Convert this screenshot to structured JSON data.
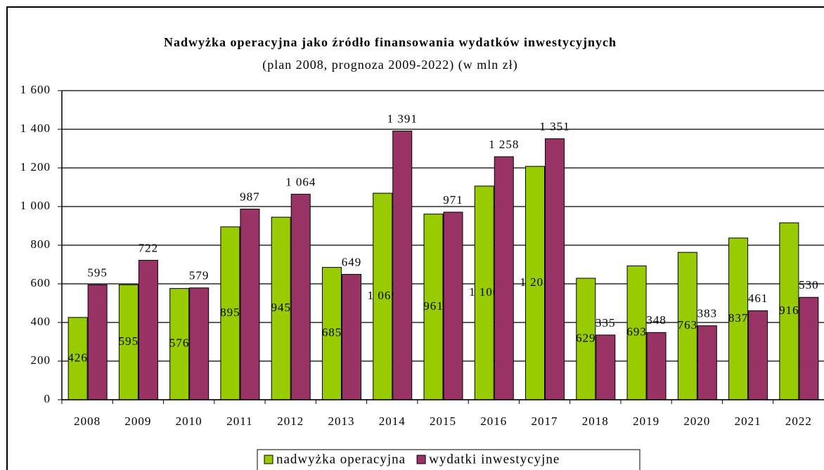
{
  "chart_data": {
    "type": "bar",
    "title": "Nadwyżka operacyjna jako źródło finansowania wydatków inwestycyjnych",
    "subtitle": "(plan 2008, prognoza 2009-2022) (w mln zł)",
    "categories": [
      "2008",
      "2009",
      "2010",
      "2011",
      "2012",
      "2013",
      "2014",
      "2015",
      "2016",
      "2017",
      "2018",
      "2019",
      "2020",
      "2021",
      "2022"
    ],
    "series": [
      {
        "name": "nadwyżka operacyjna",
        "color": "#99cc00",
        "values": [
          426,
          595,
          576,
          895,
          945,
          685,
          1069,
          961,
          1106,
          1208,
          629,
          693,
          763,
          837,
          916
        ],
        "value_labels": [
          "426",
          "595",
          "576",
          "895",
          "945",
          "685",
          "1 069",
          "961",
          "1 106",
          "1 208",
          "629",
          "693",
          "763",
          "837",
          "916"
        ]
      },
      {
        "name": "wydatki inwestycyjne",
        "color": "#993366",
        "values": [
          595,
          722,
          579,
          987,
          1064,
          649,
          1391,
          971,
          1258,
          1351,
          335,
          348,
          383,
          461,
          530
        ],
        "value_labels": [
          "595",
          "722",
          "579",
          "987",
          "1 064",
          "649",
          "1 391",
          "971",
          "1 258",
          "1 351",
          "335",
          "348",
          "383",
          "461",
          "530"
        ]
      }
    ],
    "ylim": [
      0,
      1600
    ],
    "yticks": [
      0,
      200,
      400,
      600,
      800,
      {
        "value": 1000,
        "label": "1 000"
      },
      {
        "value": 1200,
        "label": "1 200"
      },
      {
        "value": 1400,
        "label": "1 400"
      },
      {
        "value": 1600,
        "label": "1 600"
      }
    ],
    "grid": true,
    "legend": "bottom"
  }
}
